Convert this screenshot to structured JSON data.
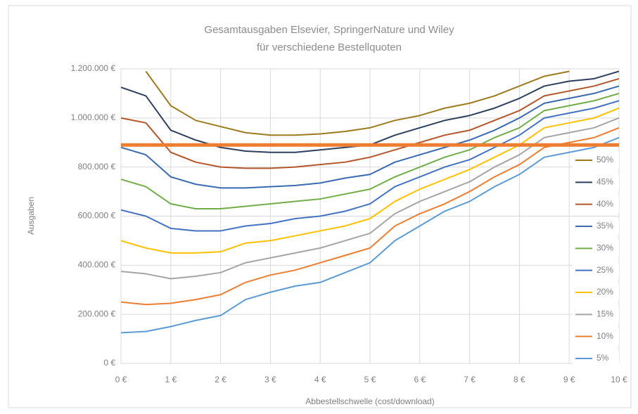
{
  "chart_data": {
    "type": "line",
    "title": "Gesamtausgaben Elsevier, SpringerNature und Wiley",
    "subtitle": "für verschiedene Bestellquoten",
    "x_label": "Abbestellschwelle (cost/download)",
    "y_label": "Ausgaben",
    "x": [
      0,
      0.5,
      1,
      1.5,
      2,
      2.5,
      3,
      3.5,
      4,
      4.5,
      5,
      5.5,
      6,
      6.5,
      7,
      7.5,
      8,
      8.5,
      9,
      9.5,
      10
    ],
    "xlim": [
      0,
      10
    ],
    "xticks": [
      {
        "value": 0,
        "label": "0 €"
      },
      {
        "value": 1,
        "label": "1 €"
      },
      {
        "value": 2,
        "label": "2 €"
      },
      {
        "value": 3,
        "label": "3 €"
      },
      {
        "value": 4,
        "label": "4 €"
      },
      {
        "value": 5,
        "label": "5 €"
      },
      {
        "value": 6,
        "label": "6 €"
      },
      {
        "value": 7,
        "label": "7 €"
      },
      {
        "value": 8,
        "label": "8 €"
      },
      {
        "value": 9,
        "label": "9 €"
      },
      {
        "value": 10,
        "label": "10 €"
      }
    ],
    "ylim": [
      0,
      1200000
    ],
    "yticks": [
      {
        "value": 0,
        "label": "0 €"
      },
      {
        "value": 200000,
        "label": "200.000 €"
      },
      {
        "value": 400000,
        "label": "400.000 €"
      },
      {
        "value": 600000,
        "label": "600.000 €"
      },
      {
        "value": 800000,
        "label": "800.000 €"
      },
      {
        "value": 1000000,
        "label": "1.000.000 €"
      },
      {
        "value": 1200000,
        "label": "1.200.000 €"
      }
    ],
    "grid": true,
    "legend": "right",
    "reference_line": {
      "value": 890000,
      "color": "#ed7d31"
    },
    "series": [
      {
        "name": "50%",
        "color": "#9c7a1e",
        "values": [
          null,
          1190000,
          1050000,
          990000,
          965000,
          940000,
          930000,
          930000,
          935000,
          945000,
          960000,
          990000,
          1010000,
          1040000,
          1060000,
          1090000,
          1130000,
          1170000,
          1190000,
          null,
          null
        ]
      },
      {
        "name": "45%",
        "color": "#2e3f5e",
        "values": [
          1125000,
          1090000,
          950000,
          910000,
          880000,
          865000,
          860000,
          860000,
          870000,
          880000,
          890000,
          930000,
          960000,
          990000,
          1010000,
          1040000,
          1080000,
          1130000,
          1150000,
          1160000,
          1190000
        ]
      },
      {
        "name": "40%",
        "color": "#b5562a",
        "values": [
          1000000,
          980000,
          860000,
          820000,
          800000,
          795000,
          795000,
          800000,
          810000,
          820000,
          840000,
          870000,
          900000,
          930000,
          950000,
          990000,
          1030000,
          1090000,
          1110000,
          1130000,
          1160000
        ]
      },
      {
        "name": "35%",
        "color": "#3a6ab0",
        "values": [
          880000,
          850000,
          760000,
          730000,
          715000,
          715000,
          720000,
          725000,
          735000,
          755000,
          770000,
          820000,
          850000,
          880000,
          910000,
          950000,
          1000000,
          1060000,
          1080000,
          1100000,
          1130000
        ]
      },
      {
        "name": "30%",
        "color": "#70ad47",
        "values": [
          750000,
          720000,
          650000,
          630000,
          630000,
          640000,
          650000,
          660000,
          670000,
          690000,
          710000,
          760000,
          800000,
          840000,
          870000,
          920000,
          960000,
          1030000,
          1050000,
          1070000,
          1100000
        ]
      },
      {
        "name": "25%",
        "color": "#4472c4",
        "values": [
          625000,
          600000,
          550000,
          540000,
          540000,
          560000,
          570000,
          590000,
          600000,
          620000,
          650000,
          720000,
          760000,
          800000,
          830000,
          880000,
          930000,
          1000000,
          1020000,
          1040000,
          1070000
        ]
      },
      {
        "name": "20%",
        "color": "#ffc000",
        "values": [
          500000,
          470000,
          450000,
          450000,
          455000,
          490000,
          500000,
          520000,
          540000,
          560000,
          590000,
          660000,
          710000,
          750000,
          790000,
          840000,
          890000,
          960000,
          980000,
          1000000,
          1040000
        ]
      },
      {
        "name": "15%",
        "color": "#a5a5a5",
        "values": [
          375000,
          365000,
          345000,
          355000,
          370000,
          410000,
          430000,
          450000,
          470000,
          500000,
          530000,
          610000,
          660000,
          700000,
          740000,
          800000,
          850000,
          920000,
          940000,
          960000,
          1000000
        ]
      },
      {
        "name": "10%",
        "color": "#ed7d31",
        "values": [
          250000,
          240000,
          245000,
          260000,
          280000,
          330000,
          360000,
          380000,
          410000,
          440000,
          470000,
          560000,
          610000,
          650000,
          700000,
          760000,
          810000,
          880000,
          900000,
          920000,
          960000
        ]
      },
      {
        "name": "5%",
        "color": "#5b9bd5",
        "values": [
          125000,
          130000,
          150000,
          175000,
          195000,
          260000,
          290000,
          315000,
          330000,
          370000,
          410000,
          500000,
          560000,
          620000,
          660000,
          720000,
          770000,
          840000,
          860000,
          880000,
          920000
        ]
      }
    ]
  }
}
